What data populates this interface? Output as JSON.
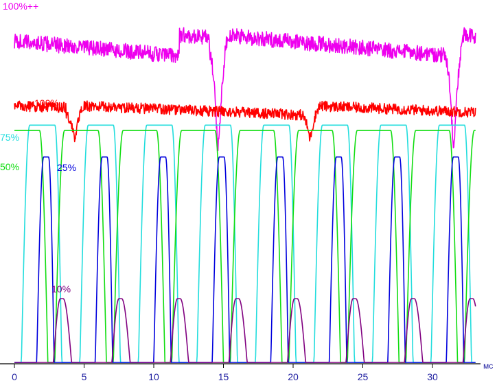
{
  "chart_data": {
    "type": "line",
    "xlabel": "мс",
    "x_ticks": [
      0,
      5,
      10,
      15,
      20,
      25,
      30
    ],
    "xlim": [
      0,
      33.5
    ],
    "ylim": [
      0,
      100
    ],
    "grid": false,
    "legend": "inline",
    "series": [
      {
        "name": "100%++",
        "color": "#ee00ee",
        "shape": "overdrive",
        "high": 92.5,
        "low": 86.5,
        "dip": 59,
        "noise": 2.2,
        "period": 16.9,
        "dip_at": [
          14.6,
          31.5
        ],
        "start_offset": 0.3,
        "x_end": 33.1
      },
      {
        "name": "100%",
        "color": "#ff0000",
        "shape": "overdrive",
        "high": 72.5,
        "low": 69.8,
        "dip": 63,
        "noise": 1.5,
        "period": 16.9,
        "dip_at": [
          4.3,
          21.2
        ],
        "start_offset": 0.0,
        "x_end": 33.1
      },
      {
        "name": "75%",
        "color": "#22dddd",
        "shape": "pulses",
        "high": 67,
        "low": 0,
        "period": 4.2,
        "start": 0.5,
        "width": 1.8,
        "rise": 0.6,
        "fall": 0.5,
        "x_end": 33.1
      },
      {
        "name": "50%",
        "color": "#11dd11",
        "shape": "pulses",
        "high": 65.5,
        "low": 0,
        "period": 4.2,
        "start": 2.9,
        "width": 2.4,
        "rise": 0.7,
        "fall": 0.6,
        "x_end": 33.1
      },
      {
        "name": "25%",
        "color": "#0000dd",
        "shape": "pulses",
        "high": 58,
        "low": 0,
        "period": 4.2,
        "start": 1.6,
        "width": 0.35,
        "rise": 0.5,
        "fall": 0.4,
        "x_end": 33.1
      },
      {
        "name": "10%",
        "color": "#800080",
        "shape": "pulses",
        "high": 18,
        "low": 0,
        "period": 4.2,
        "start": 2.8,
        "width": 0.2,
        "rise": 0.5,
        "fall": 0.6,
        "x_end": 33.1
      }
    ]
  }
}
